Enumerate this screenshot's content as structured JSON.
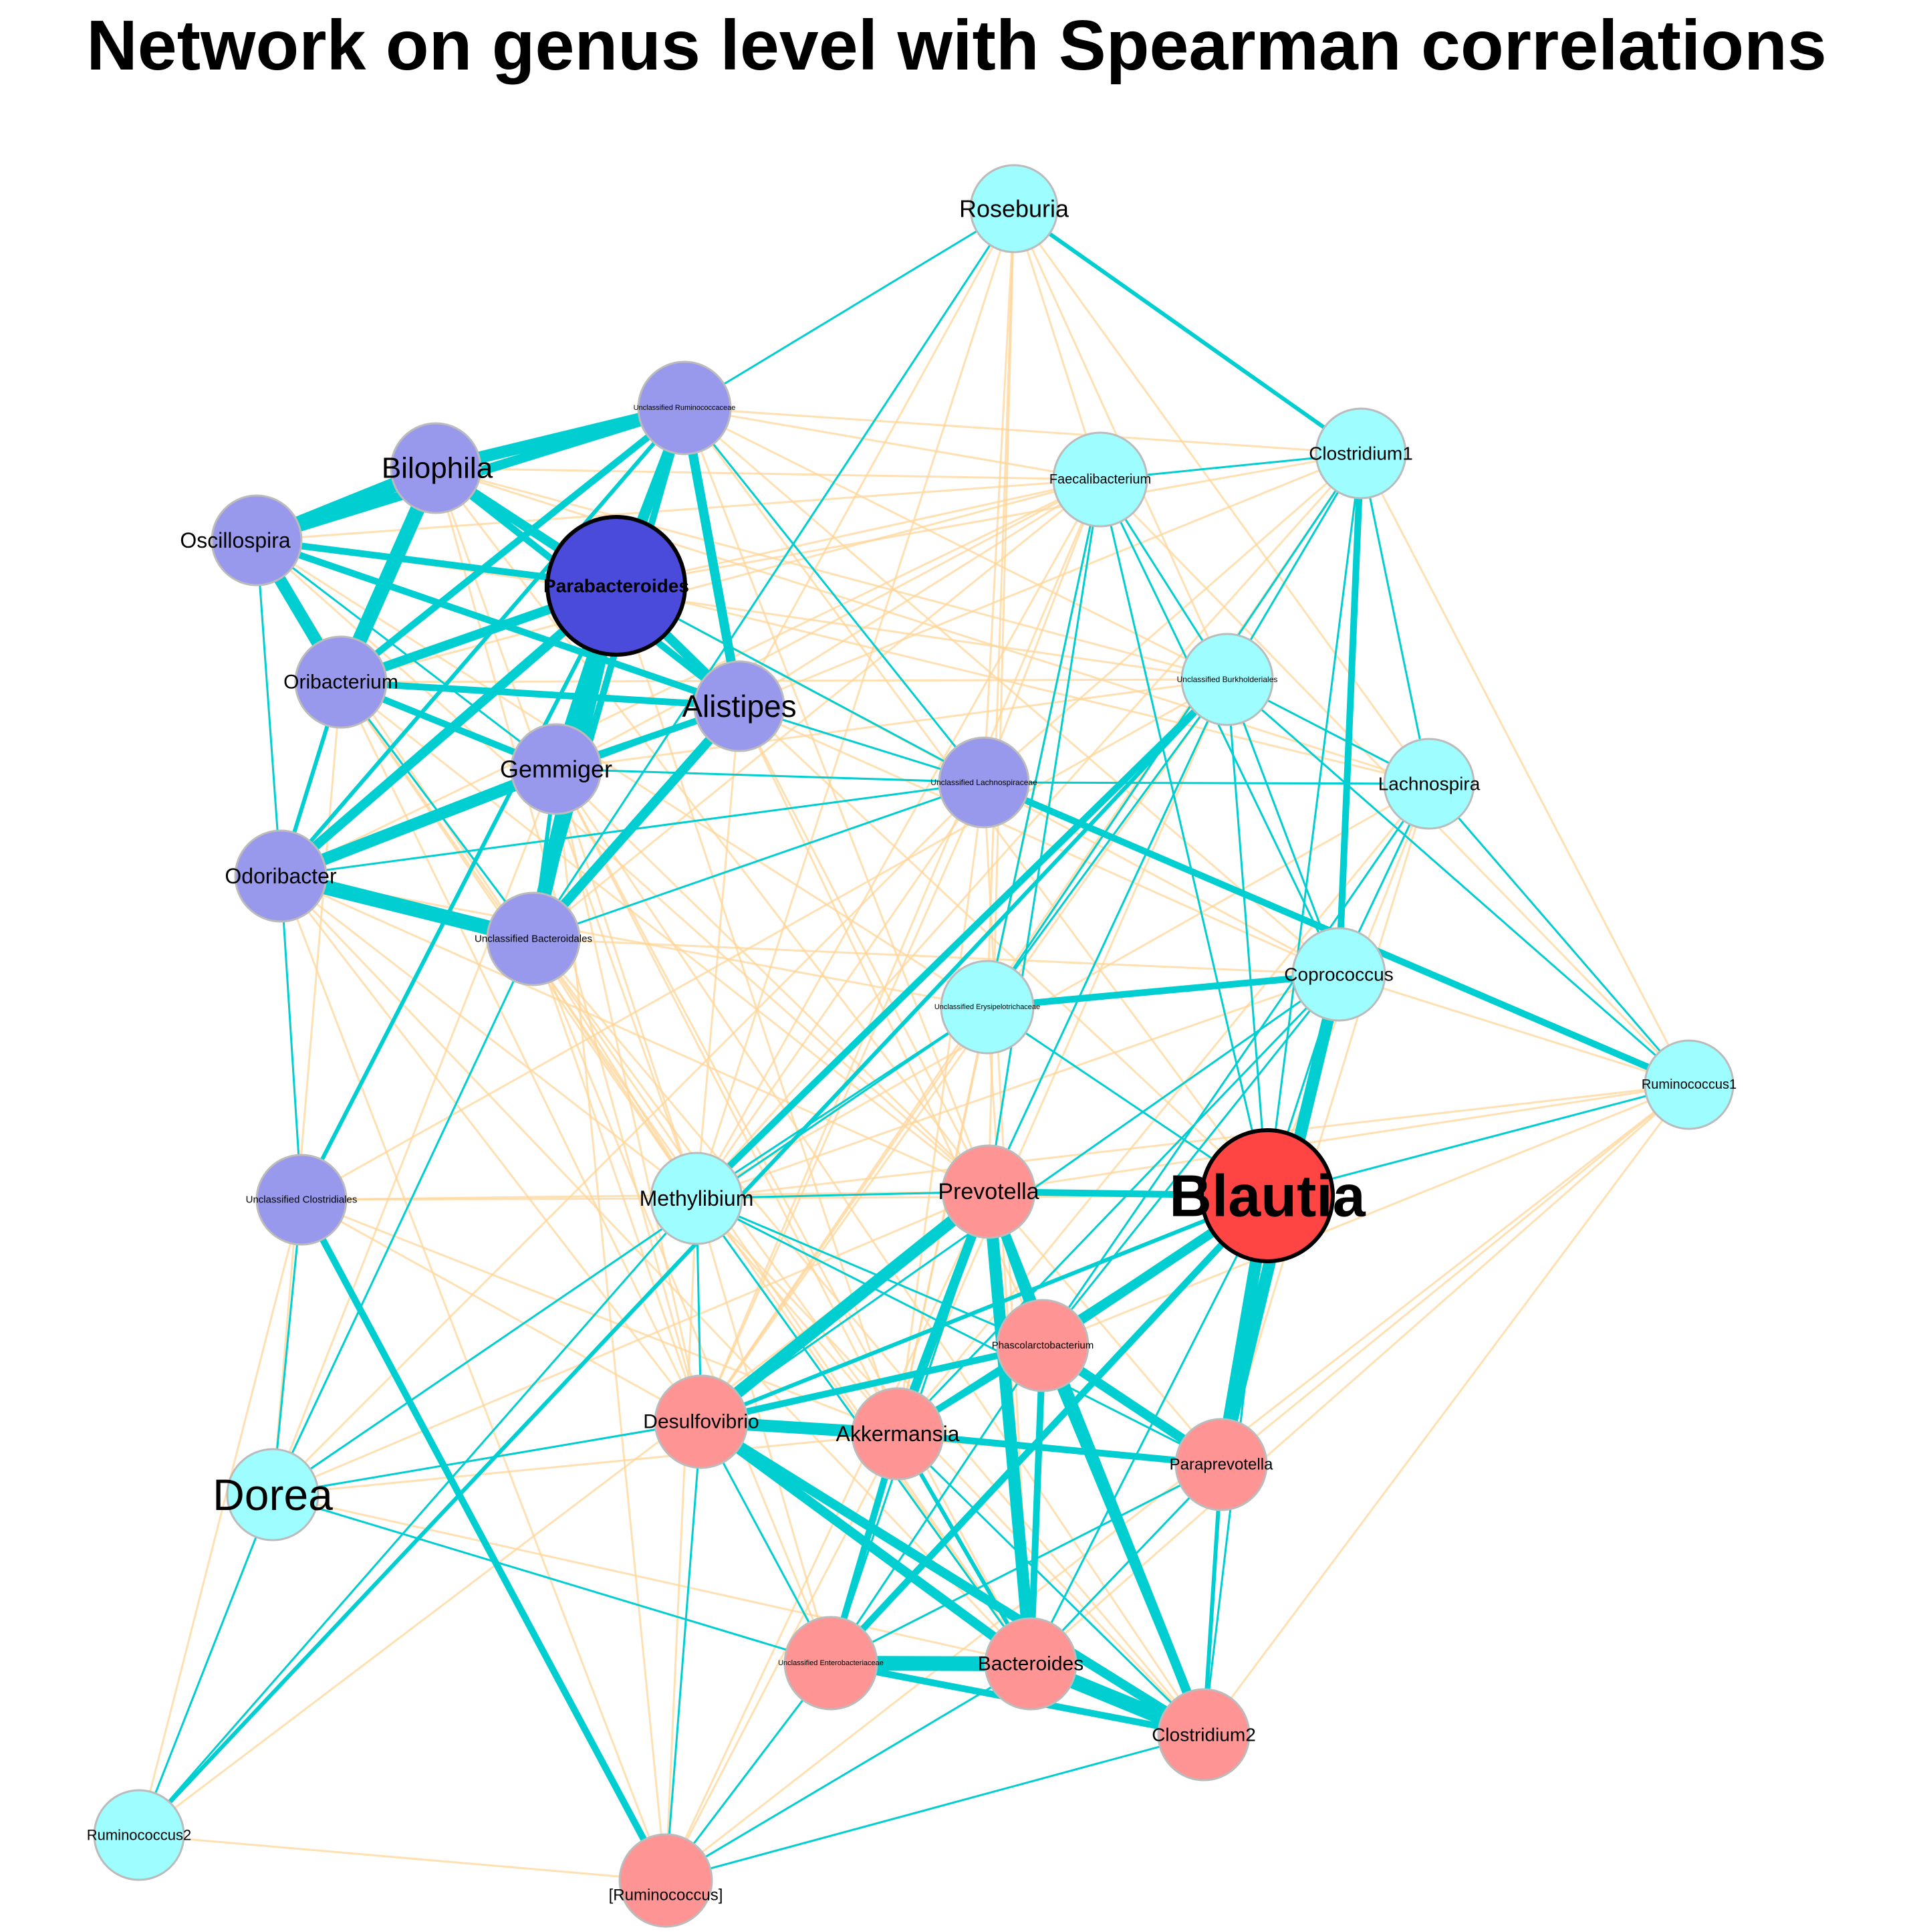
{
  "title": "Network on genus level with Spearman correlations",
  "colors": {
    "positive_edge": "#00CED1",
    "negative_edge": "#FFD699",
    "cluster_purple": "#9898EC",
    "cluster_cyan": "#9EFDFF",
    "cluster_red": "#FF9494",
    "hub_purple": "#4A4ADB",
    "hub_red": "#FF4444",
    "node_border": "#BBBBBB",
    "hub_border": "#000000"
  },
  "nodes": [
    {
      "id": "roseburia",
      "label": "Roseburia",
      "group": "cyan"
    },
    {
      "id": "unc_ruminococcaceae",
      "label": "Unclassified Ruminococcaceae",
      "group": "purple"
    },
    {
      "id": "clostridium1",
      "label": "Clostridium1",
      "group": "cyan"
    },
    {
      "id": "faecalibacterium",
      "label": "Faecalibacterium",
      "group": "cyan"
    },
    {
      "id": "bilophila",
      "label": "Bilophila",
      "group": "purple"
    },
    {
      "id": "oscillospira",
      "label": "Oscillospira",
      "group": "purple"
    },
    {
      "id": "parabacteroides",
      "label": "Parabacteroides",
      "group": "purple",
      "hub": true
    },
    {
      "id": "oribacterium",
      "label": "Oribacterium",
      "group": "purple"
    },
    {
      "id": "alistipes",
      "label": "Alistipes",
      "group": "purple"
    },
    {
      "id": "unc_burkholderiales",
      "label": "Unclassified Burkholderiales",
      "group": "cyan"
    },
    {
      "id": "gemmiger",
      "label": "Gemmiger",
      "group": "purple"
    },
    {
      "id": "unc_lachnospiraceae",
      "label": "Unclassified Lachnospiraceae",
      "group": "purple"
    },
    {
      "id": "lachnospira",
      "label": "Lachnospira",
      "group": "cyan"
    },
    {
      "id": "odoribacter",
      "label": "Odoribacter",
      "group": "purple"
    },
    {
      "id": "unc_bacteroidales",
      "label": "Unclassified Bacteroidales",
      "group": "purple"
    },
    {
      "id": "coprococcus",
      "label": "Coprococcus",
      "group": "cyan"
    },
    {
      "id": "unc_erysipelotrichaceae",
      "label": "Unclassified Erysipelotrichaceae",
      "group": "cyan"
    },
    {
      "id": "ruminococcus1",
      "label": "Ruminococcus1",
      "group": "cyan"
    },
    {
      "id": "unc_clostridiales",
      "label": "Unclassified Clostridiales",
      "group": "purple"
    },
    {
      "id": "methylibium",
      "label": "Methylibium",
      "group": "cyan"
    },
    {
      "id": "prevotella",
      "label": "Prevotella",
      "group": "red"
    },
    {
      "id": "blautia",
      "label": "Blautia",
      "group": "red",
      "hub": true
    },
    {
      "id": "phascolarctobacterium",
      "label": "Phascolarctobacterium",
      "group": "red"
    },
    {
      "id": "desulfovibrio",
      "label": "Desulfovibrio",
      "group": "red"
    },
    {
      "id": "akkermansia",
      "label": "Akkermansia",
      "group": "red"
    },
    {
      "id": "paraprevotella",
      "label": "Paraprevotella",
      "group": "red"
    },
    {
      "id": "dorea",
      "label": "Dorea",
      "group": "cyan"
    },
    {
      "id": "unc_enterobacteriaceae",
      "label": "Unclassified Enterobacteriaceae",
      "group": "red"
    },
    {
      "id": "bacteroides",
      "label": "Bacteroides",
      "group": "red"
    },
    {
      "id": "clostridium2",
      "label": "Clostridium2",
      "group": "red"
    },
    {
      "id": "ruminococcus2",
      "label": "Ruminococcus2",
      "group": "cyan"
    },
    {
      "id": "ruminococcus_br",
      "label": "[Ruminococcus]",
      "group": "red"
    }
  ],
  "positive_edges": [
    [
      "bilophila",
      "oscillospira",
      6
    ],
    [
      "bilophila",
      "unc_ruminococcaceae",
      5
    ],
    [
      "bilophila",
      "oribacterium",
      6
    ],
    [
      "bilophila",
      "parabacteroides",
      4
    ],
    [
      "bilophila",
      "alistipes",
      3
    ],
    [
      "oscillospira",
      "unc_ruminococcaceae",
      4
    ],
    [
      "oscillospira",
      "parabacteroides",
      3
    ],
    [
      "oscillospira",
      "oribacterium",
      5
    ],
    [
      "oscillospira",
      "alistipes",
      3
    ],
    [
      "oscillospira",
      "odoribacter",
      1
    ],
    [
      "oscillospira",
      "gemmiger",
      1
    ],
    [
      "unc_ruminococcaceae",
      "parabacteroides",
      4
    ],
    [
      "unc_ruminococcaceae",
      "alistipes",
      4
    ],
    [
      "unc_ruminococcaceae",
      "unc_bacteroidales",
      3
    ],
    [
      "unc_ruminococcaceae",
      "gemmiger",
      3
    ],
    [
      "unc_ruminococcaceae",
      "oribacterium",
      3
    ],
    [
      "unc_ruminococcaceae",
      "odoribacter",
      2
    ],
    [
      "unc_ruminococcaceae",
      "roseburia",
      1
    ],
    [
      "unc_ruminococcaceae",
      "unc_lachnospiraceae",
      1
    ],
    [
      "parabacteroides",
      "oribacterium",
      4
    ],
    [
      "parabacteroides",
      "gemmiger",
      5
    ],
    [
      "parabacteroides",
      "alistipes",
      4
    ],
    [
      "parabacteroides",
      "unc_bacteroidales",
      6
    ],
    [
      "parabacteroides",
      "odoribacter",
      4
    ],
    [
      "parabacteroides",
      "unc_clostridiales",
      2
    ],
    [
      "parabacteroides",
      "unc_lachnospiraceae",
      1
    ],
    [
      "oribacterium",
      "alistipes",
      3
    ],
    [
      "oribacterium",
      "gemmiger",
      3
    ],
    [
      "oribacterium",
      "odoribacter",
      2
    ],
    [
      "oribacterium",
      "unc_bacteroidales",
      1
    ],
    [
      "alistipes",
      "gemmiger",
      3
    ],
    [
      "alistipes",
      "unc_bacteroidales",
      4
    ],
    [
      "alistipes",
      "odoribacter",
      1
    ],
    [
      "alistipes",
      "unc_lachnospiraceae",
      1
    ],
    [
      "gemmiger",
      "odoribacter",
      5
    ],
    [
      "gemmiger",
      "unc_bacteroidales",
      2
    ],
    [
      "gemmiger",
      "unc_lachnospiraceae",
      1
    ],
    [
      "odoribacter",
      "unc_bacteroidales",
      6
    ],
    [
      "odoribacter",
      "unc_clostridiales",
      1
    ],
    [
      "odoribacter",
      "unc_lachnospiraceae",
      1
    ],
    [
      "unc_bacteroidales",
      "dorea",
      1
    ],
    [
      "unc_bacteroidales",
      "unc_lachnospiraceae",
      1
    ],
    [
      "unc_bacteroidales",
      "roseburia",
      1
    ],
    [
      "unc_clostridiales",
      "ruminococcus_br",
      3
    ],
    [
      "roseburia",
      "clostridium1",
      2
    ],
    [
      "clostridium1",
      "faecalibacterium",
      1
    ],
    [
      "clostridium1",
      "coprococcus",
      3
    ],
    [
      "clostridium1",
      "unc_burkholderiales",
      1
    ],
    [
      "clostridium1",
      "lachnospira",
      1
    ],
    [
      "clostridium1",
      "unc_erysipelotrichaceae",
      1
    ],
    [
      "clostridium1",
      "blautia",
      1
    ],
    [
      "faecalibacterium",
      "unc_burkholderiales",
      1
    ],
    [
      "faecalibacterium",
      "coprococcus",
      1
    ],
    [
      "faecalibacterium",
      "unc_erysipelotrichaceae",
      1
    ],
    [
      "faecalibacterium",
      "blautia",
      1
    ],
    [
      "faecalibacterium",
      "prevotella",
      1
    ],
    [
      "unc_burkholderiales",
      "lachnospira",
      1
    ],
    [
      "unc_burkholderiales",
      "coprococcus",
      1
    ],
    [
      "unc_burkholderiales",
      "methylibium",
      3
    ],
    [
      "unc_burkholderiales",
      "ruminococcus2",
      2
    ],
    [
      "unc_burkholderiales",
      "ruminococcus1",
      1
    ],
    [
      "unc_burkholderiales",
      "unc_erysipelotrichaceae",
      1
    ],
    [
      "unc_burkholderiales",
      "prevotella",
      1
    ],
    [
      "unc_burkholderiales",
      "blautia",
      1
    ],
    [
      "unc_lachnospiraceae",
      "ruminococcus1",
      3
    ],
    [
      "unc_lachnospiraceae",
      "lachnospira",
      1
    ],
    [
      "lachnospira",
      "coprococcus",
      1
    ],
    [
      "lachnospira",
      "ruminococcus1",
      1
    ],
    [
      "lachnospira",
      "phascolarctobacterium",
      1
    ],
    [
      "coprococcus",
      "unc_erysipelotrichaceae",
      3
    ],
    [
      "coprococcus",
      "blautia",
      1
    ],
    [
      "coprococcus",
      "paraprevotella",
      5
    ],
    [
      "coprococcus",
      "akkermansia",
      1
    ],
    [
      "coprococcus",
      "phascolarctobacterium",
      1
    ],
    [
      "coprococcus",
      "desulfovibrio",
      1
    ],
    [
      "unc_erysipelotrichaceae",
      "methylibium",
      1
    ],
    [
      "unc_erysipelotrichaceae",
      "blautia",
      1
    ],
    [
      "unc_erysipelotrichaceae",
      "dorea",
      1
    ],
    [
      "ruminococcus1",
      "blautia",
      1
    ],
    [
      "methylibium",
      "prevotella",
      1
    ],
    [
      "methylibium",
      "phascolarctobacterium",
      1
    ],
    [
      "methylibium",
      "desulfovibrio",
      1
    ],
    [
      "methylibium",
      "bacteroides",
      1
    ],
    [
      "methylibium",
      "paraprevotella",
      1
    ],
    [
      "prevotella",
      "blautia",
      3
    ],
    [
      "prevotella",
      "desulfovibrio",
      5
    ],
    [
      "prevotella",
      "akkermansia",
      4
    ],
    [
      "prevotella",
      "phascolarctobacterium",
      3
    ],
    [
      "prevotella",
      "bacteroides",
      5
    ],
    [
      "prevotella",
      "clostridium2",
      4
    ],
    [
      "prevotella",
      "unc_enterobacteriaceae",
      1
    ],
    [
      "blautia",
      "phascolarctobacterium",
      4
    ],
    [
      "blautia",
      "paraprevotella",
      5
    ],
    [
      "blautia",
      "unc_enterobacteriaceae",
      3
    ],
    [
      "blautia",
      "desulfovibrio",
      2
    ],
    [
      "blautia",
      "akkermansia",
      2
    ],
    [
      "blautia",
      "clostridium2",
      1
    ],
    [
      "blautia",
      "bacteroides",
      1
    ],
    [
      "phascolarctobacterium",
      "desulfovibrio",
      3
    ],
    [
      "phascolarctobacterium",
      "akkermansia",
      3
    ],
    [
      "phascolarctobacterium",
      "paraprevotella",
      4
    ],
    [
      "phascolarctobacterium",
      "bacteroides",
      3
    ],
    [
      "phascolarctobacterium",
      "clostridium2",
      3
    ],
    [
      "phascolarctobacterium",
      "unc_enterobacteriaceae",
      1
    ],
    [
      "desulfovibrio",
      "akkermansia",
      5
    ],
    [
      "desulfovibrio",
      "bacteroides",
      4
    ],
    [
      "desulfovibrio",
      "clostridium2",
      4
    ],
    [
      "desulfovibrio",
      "unc_enterobacteriaceae",
      1
    ],
    [
      "desulfovibrio",
      "ruminococcus_br",
      1
    ],
    [
      "desulfovibrio",
      "dorea",
      1
    ],
    [
      "akkermansia",
      "paraprevotella",
      3
    ],
    [
      "akkermansia",
      "unc_enterobacteriaceae",
      3
    ],
    [
      "akkermansia",
      "bacteroides",
      2
    ],
    [
      "akkermansia",
      "clostridium2",
      1
    ],
    [
      "paraprevotella",
      "clostridium2",
      2
    ],
    [
      "paraprevotella",
      "bacteroides",
      1
    ],
    [
      "paraprevotella",
      "unc_enterobacteriaceae",
      1
    ],
    [
      "unc_enterobacteriaceae",
      "bacteroides",
      6
    ],
    [
      "unc_enterobacteriaceae",
      "clostridium2",
      3
    ],
    [
      "unc_enterobacteriaceae",
      "ruminococcus_br",
      1
    ],
    [
      "unc_enterobacteriaceae",
      "dorea",
      1
    ],
    [
      "bacteroides",
      "clostridium2",
      6
    ],
    [
      "bacteroides",
      "ruminococcus_br",
      1
    ],
    [
      "clostridium2",
      "ruminococcus_br",
      1
    ],
    [
      "dorea",
      "ruminococcus2",
      1
    ],
    [
      "methylibium",
      "ruminococcus2",
      1
    ],
    [
      "unc_clostridiales",
      "dorea",
      1
    ]
  ],
  "negative_edges": [
    [
      "roseburia",
      "faecalibacterium"
    ],
    [
      "roseburia",
      "unc_burkholderiales"
    ],
    [
      "roseburia",
      "prevotella"
    ],
    [
      "roseburia",
      "methylibium"
    ],
    [
      "roseburia",
      "alistipes"
    ],
    [
      "roseburia",
      "unc_lachnospiraceae"
    ],
    [
      "roseburia",
      "unc_erysipelotrichaceae"
    ],
    [
      "roseburia",
      "lachnospira"
    ],
    [
      "unc_ruminococcaceae",
      "faecalibacterium"
    ],
    [
      "unc_ruminococcaceae",
      "clostridium1"
    ],
    [
      "unc_ruminococcaceae",
      "unc_burkholderiales"
    ],
    [
      "unc_ruminococcaceae",
      "coprococcus"
    ],
    [
      "unc_ruminococcaceae",
      "prevotella"
    ],
    [
      "unc_ruminococcaceae",
      "blautia"
    ],
    [
      "bilophila",
      "faecalibacterium"
    ],
    [
      "bilophila",
      "unc_burkholderiales"
    ],
    [
      "bilophila",
      "prevotella"
    ],
    [
      "bilophila",
      "methylibium"
    ],
    [
      "bilophila",
      "desulfovibrio"
    ],
    [
      "bilophila",
      "lachnospira"
    ],
    [
      "oscillospira",
      "faecalibacterium"
    ],
    [
      "oscillospira",
      "unc_burkholderiales"
    ],
    [
      "oscillospira",
      "unc_erysipelotrichaceae"
    ],
    [
      "oscillospira",
      "methylibium"
    ],
    [
      "oscillospira",
      "prevotella"
    ],
    [
      "parabacteroides",
      "faecalibacterium"
    ],
    [
      "parabacteroides",
      "clostridium1"
    ],
    [
      "parabacteroides",
      "coprococcus"
    ],
    [
      "parabacteroides",
      "blautia"
    ],
    [
      "parabacteroides",
      "lachnospira"
    ],
    [
      "parabacteroides",
      "akkermansia"
    ],
    [
      "oribacterium",
      "faecalibacterium"
    ],
    [
      "oribacterium",
      "unc_burkholderiales"
    ],
    [
      "oribacterium",
      "methylibium"
    ],
    [
      "oribacterium",
      "desulfovibrio"
    ],
    [
      "oribacterium",
      "prevotella"
    ],
    [
      "oribacterium",
      "bacteroides"
    ],
    [
      "alistipes",
      "faecalibacterium"
    ],
    [
      "alistipes",
      "clostridium1"
    ],
    [
      "alistipes",
      "coprococcus"
    ],
    [
      "alistipes",
      "methylibium"
    ],
    [
      "alistipes",
      "prevotella"
    ],
    [
      "alistipes",
      "phascolarctobacterium"
    ],
    [
      "gemmiger",
      "faecalibacterium"
    ],
    [
      "gemmiger",
      "unc_burkholderiales"
    ],
    [
      "gemmiger",
      "methylibium"
    ],
    [
      "gemmiger",
      "desulfovibrio"
    ],
    [
      "gemmiger",
      "akkermansia"
    ],
    [
      "gemmiger",
      "prevotella"
    ],
    [
      "gemmiger",
      "bacteroides"
    ],
    [
      "gemmiger",
      "clostridium2"
    ],
    [
      "odoribacter",
      "faecalibacterium"
    ],
    [
      "odoribacter",
      "methylibium"
    ],
    [
      "odoribacter",
      "desulfovibrio"
    ],
    [
      "odoribacter",
      "prevotella"
    ],
    [
      "odoribacter",
      "unc_erysipelotrichaceae"
    ],
    [
      "odoribacter",
      "bacteroides"
    ],
    [
      "unc_bacteroidales",
      "faecalibacterium"
    ],
    [
      "unc_bacteroidales",
      "methylibium"
    ],
    [
      "unc_bacteroidales",
      "desulfovibrio"
    ],
    [
      "unc_bacteroidales",
      "akkermansia"
    ],
    [
      "unc_bacteroidales",
      "bacteroides"
    ],
    [
      "unc_bacteroidales",
      "unc_enterobacteriaceae"
    ],
    [
      "unc_bacteroidales",
      "clostridium2"
    ],
    [
      "unc_bacteroidales",
      "coprococcus"
    ],
    [
      "unc_clostridiales",
      "methylibium"
    ],
    [
      "unc_clostridiales",
      "desulfovibrio"
    ],
    [
      "unc_clostridiales",
      "akkermansia"
    ],
    [
      "unc_clostridiales",
      "prevotella"
    ],
    [
      "unc_clostridiales",
      "unc_burkholderiales"
    ],
    [
      "unc_lachnospiraceae",
      "desulfovibrio"
    ],
    [
      "unc_lachnospiraceae",
      "akkermansia"
    ],
    [
      "unc_lachnospiraceae",
      "bacteroides"
    ],
    [
      "unc_lachnospiraceae",
      "methylibium"
    ],
    [
      "unc_lachnospiraceae",
      "clostridium1"
    ],
    [
      "unc_lachnospiraceae",
      "faecalibacterium"
    ],
    [
      "faecalibacterium",
      "desulfovibrio"
    ],
    [
      "faecalibacterium",
      "akkermansia"
    ],
    [
      "faecalibacterium",
      "methylibium"
    ],
    [
      "faecalibacterium",
      "ruminococcus1"
    ],
    [
      "clostridium1",
      "methylibium"
    ],
    [
      "clostridium1",
      "desulfovibrio"
    ],
    [
      "clostridium1",
      "ruminococcus1"
    ],
    [
      "unc_burkholderiales",
      "desulfovibrio"
    ],
    [
      "unc_burkholderiales",
      "akkermansia"
    ],
    [
      "coprococcus",
      "methylibium"
    ],
    [
      "coprococcus",
      "ruminococcus1"
    ],
    [
      "lachnospira",
      "methylibium"
    ],
    [
      "lachnospira",
      "akkermansia"
    ],
    [
      "lachnospira",
      "blautia"
    ],
    [
      "lachnospira",
      "paraprevotella"
    ],
    [
      "ruminococcus1",
      "methylibium"
    ],
    [
      "ruminococcus1",
      "prevotella"
    ],
    [
      "ruminococcus1",
      "phascolarctobacterium"
    ],
    [
      "ruminococcus1",
      "paraprevotella"
    ],
    [
      "ruminococcus1",
      "bacteroides"
    ],
    [
      "ruminococcus1",
      "clostridium2"
    ],
    [
      "ruminococcus1",
      "ruminococcus_br"
    ],
    [
      "unc_erysipelotrichaceae",
      "desulfovibrio"
    ],
    [
      "unc_erysipelotrichaceae",
      "akkermansia"
    ],
    [
      "unc_erysipelotrichaceae",
      "bacteroides"
    ],
    [
      "dorea",
      "oribacterium"
    ],
    [
      "dorea",
      "gemmiger"
    ],
    [
      "dorea",
      "unc_lachnospiraceae"
    ],
    [
      "dorea",
      "prevotella"
    ],
    [
      "dorea",
      "bacteroides"
    ],
    [
      "dorea",
      "akkermansia"
    ],
    [
      "ruminococcus2",
      "ruminococcus_br"
    ],
    [
      "ruminococcus2",
      "unc_clostridiales"
    ],
    [
      "ruminococcus2",
      "prevotella"
    ],
    [
      "ruminococcus_br",
      "methylibium"
    ],
    [
      "ruminococcus_br",
      "akkermansia"
    ],
    [
      "ruminococcus_br",
      "prevotella"
    ],
    [
      "ruminococcus_br",
      "gemmiger"
    ],
    [
      "ruminococcus_br",
      "odoribacter"
    ],
    [
      "methylibium",
      "akkermansia"
    ],
    [
      "methylibium",
      "blautia"
    ],
    [
      "methylibium",
      "clostridium2"
    ],
    [
      "methylibium",
      "unc_enterobacteriaceae"
    ],
    [
      "prevotella",
      "paraprevotella"
    ],
    [
      "desulfovibrio",
      "paraprevotella"
    ]
  ]
}
